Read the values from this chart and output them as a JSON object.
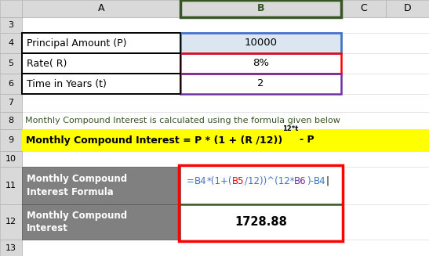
{
  "col_header_bg": "#d9d9d9",
  "blue_cell_bg": "#dce6f1",
  "gray_cell_bg": "#808080",
  "yellow_bg": "#ffff00",
  "white_bg": "#ffffff",
  "text_green": "#375623",
  "text_black": "#000000",
  "text_white": "#ffffff",
  "text_blue": "#4472c4",
  "text_red": "#ff0000",
  "text_purple": "#7030a0",
  "result_text": "1728.88",
  "row8_text": "Monthly Compound Interest is calculated using the formula given below",
  "row9_main": "Monthly Compound Interest = P * (1 + (R /12))",
  "row9_super": "12*t",
  "row9_suffix": "- P",
  "blue_border_color": "#4472c4",
  "red_border_color": "#ff0000",
  "purple_border_color": "#7030a0",
  "dark_green_header": "#375623",
  "formula_parts": [
    [
      "=",
      "#4472c4"
    ],
    [
      "B4",
      "#4472c4"
    ],
    [
      "*(1+(",
      "#4472c4"
    ],
    [
      "B5",
      "#ff0000"
    ],
    [
      "/12))^(12*",
      "#4472c4"
    ],
    [
      "B6",
      "#7030a0"
    ],
    [
      ")-",
      "#4472c4"
    ],
    [
      "B4",
      "#4472c4"
    ],
    [
      "|",
      "#000000"
    ]
  ]
}
